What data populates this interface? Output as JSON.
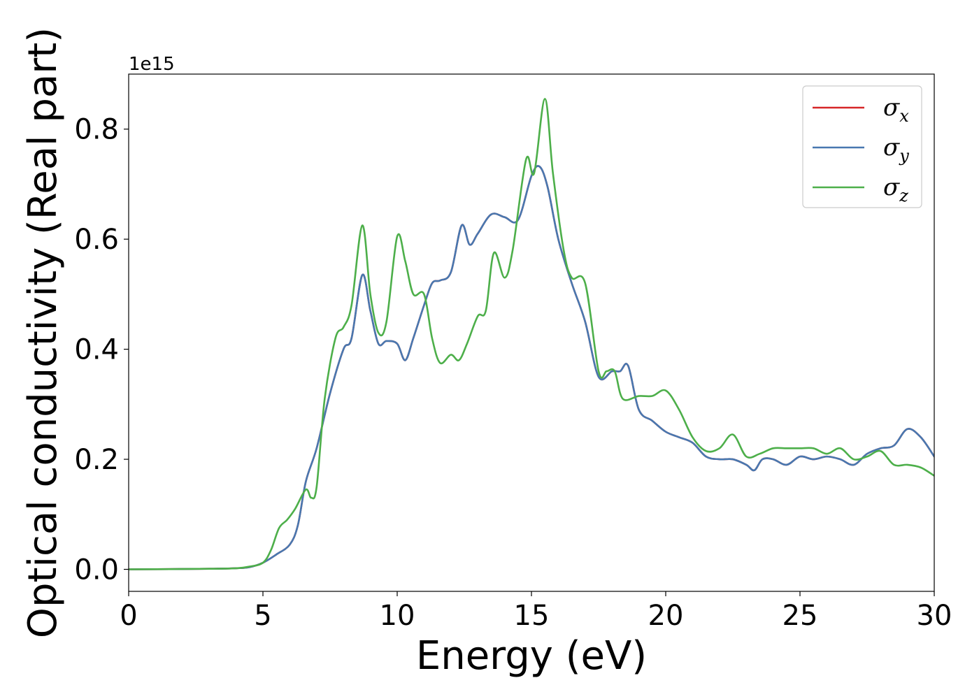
{
  "chart_data": {
    "type": "line",
    "title": "",
    "xlabel": "Energy (eV)",
    "ylabel": "Optical conductivity (Real part)",
    "y_offset_label": "1e15",
    "xlim": [
      0,
      30
    ],
    "ylim": [
      -0.04,
      0.9
    ],
    "xticks": [
      0,
      5,
      10,
      15,
      20,
      25,
      30
    ],
    "xtick_labels": [
      "0",
      "5",
      "10",
      "15",
      "20",
      "25",
      "30"
    ],
    "yticks": [
      0.0,
      0.2,
      0.4,
      0.6,
      0.8
    ],
    "ytick_labels": [
      "0.0",
      "0.2",
      "0.4",
      "0.6",
      "0.8"
    ],
    "grid": false,
    "legend_position": "top-right",
    "series": [
      {
        "name": "σx",
        "symbol": "σ",
        "subscript": "x",
        "color": "#d62728",
        "x": [
          0,
          3,
          4,
          4.5,
          5,
          5.5,
          6,
          6.3,
          6.6,
          7,
          7.5,
          8,
          8.3,
          8.7,
          9,
          9.3,
          9.6,
          10,
          10.3,
          10.6,
          11,
          11.3,
          11.6,
          12,
          12.4,
          12.7,
          13,
          13.5,
          14,
          14.5,
          15,
          15.3,
          15.6,
          16,
          16.5,
          17,
          17.5,
          18,
          18.3,
          18.6,
          19,
          19.5,
          20,
          20.5,
          21,
          21.5,
          22,
          22.5,
          23,
          23.3,
          23.6,
          24,
          24.5,
          25,
          25.5,
          26,
          26.5,
          27,
          27.5,
          28,
          28.5,
          29,
          29.5,
          30
        ],
        "y": [
          0.0,
          0.001,
          0.002,
          0.004,
          0.012,
          0.027,
          0.045,
          0.08,
          0.16,
          0.22,
          0.32,
          0.4,
          0.42,
          0.535,
          0.47,
          0.41,
          0.415,
          0.41,
          0.38,
          0.42,
          0.48,
          0.52,
          0.525,
          0.54,
          0.625,
          0.59,
          0.61,
          0.645,
          0.64,
          0.635,
          0.715,
          0.732,
          0.695,
          0.6,
          0.52,
          0.45,
          0.35,
          0.36,
          0.36,
          0.37,
          0.29,
          0.27,
          0.25,
          0.24,
          0.23,
          0.205,
          0.2,
          0.2,
          0.19,
          0.18,
          0.2,
          0.2,
          0.19,
          0.205,
          0.2,
          0.205,
          0.2,
          0.19,
          0.21,
          0.22,
          0.225,
          0.255,
          0.24,
          0.205
        ]
      },
      {
        "name": "σy",
        "symbol": "σ",
        "subscript": "y",
        "color": "#4878b0",
        "x": [
          0,
          3,
          4,
          4.5,
          5,
          5.5,
          6,
          6.3,
          6.6,
          7,
          7.5,
          8,
          8.3,
          8.7,
          9,
          9.3,
          9.6,
          10,
          10.3,
          10.6,
          11,
          11.3,
          11.6,
          12,
          12.4,
          12.7,
          13,
          13.5,
          14,
          14.5,
          15,
          15.3,
          15.6,
          16,
          16.5,
          17,
          17.5,
          18,
          18.3,
          18.6,
          19,
          19.5,
          20,
          20.5,
          21,
          21.5,
          22,
          22.5,
          23,
          23.3,
          23.6,
          24,
          24.5,
          25,
          25.5,
          26,
          26.5,
          27,
          27.5,
          28,
          28.5,
          29,
          29.5,
          30
        ],
        "y": [
          0.0,
          0.001,
          0.002,
          0.004,
          0.012,
          0.027,
          0.045,
          0.08,
          0.16,
          0.22,
          0.32,
          0.4,
          0.42,
          0.535,
          0.47,
          0.41,
          0.415,
          0.41,
          0.38,
          0.42,
          0.48,
          0.52,
          0.525,
          0.54,
          0.625,
          0.59,
          0.61,
          0.645,
          0.64,
          0.635,
          0.715,
          0.732,
          0.695,
          0.6,
          0.52,
          0.45,
          0.35,
          0.36,
          0.36,
          0.37,
          0.29,
          0.27,
          0.25,
          0.24,
          0.23,
          0.205,
          0.2,
          0.2,
          0.19,
          0.18,
          0.2,
          0.2,
          0.19,
          0.205,
          0.2,
          0.205,
          0.2,
          0.19,
          0.21,
          0.22,
          0.225,
          0.255,
          0.24,
          0.205
        ]
      },
      {
        "name": "σz",
        "symbol": "σ",
        "subscript": "z",
        "color": "#4daf4a",
        "x": [
          0,
          3,
          4,
          4.5,
          5,
          5.3,
          5.6,
          5.9,
          6.2,
          6.6,
          6.8,
          7,
          7.3,
          7.7,
          8,
          8.3,
          8.7,
          9,
          9.3,
          9.6,
          10,
          10.3,
          10.6,
          11,
          11.3,
          11.6,
          12,
          12.3,
          12.6,
          13,
          13.3,
          13.6,
          14,
          14.3,
          14.8,
          15.1,
          15.5,
          15.8,
          16.2,
          16.5,
          17,
          17.5,
          17.8,
          18.1,
          18.4,
          19,
          19.5,
          20,
          20.5,
          21,
          21.5,
          22,
          22.5,
          23,
          23.5,
          24,
          24.5,
          25,
          25.5,
          26,
          26.5,
          27,
          27.5,
          28,
          28.5,
          29,
          29.5,
          30
        ],
        "y": [
          0.0,
          0.001,
          0.002,
          0.005,
          0.012,
          0.035,
          0.075,
          0.09,
          0.11,
          0.145,
          0.13,
          0.15,
          0.31,
          0.42,
          0.44,
          0.48,
          0.625,
          0.5,
          0.43,
          0.45,
          0.605,
          0.56,
          0.5,
          0.5,
          0.42,
          0.375,
          0.39,
          0.38,
          0.41,
          0.46,
          0.47,
          0.575,
          0.53,
          0.58,
          0.745,
          0.72,
          0.855,
          0.72,
          0.58,
          0.53,
          0.52,
          0.36,
          0.36,
          0.36,
          0.31,
          0.315,
          0.315,
          0.325,
          0.29,
          0.24,
          0.215,
          0.22,
          0.245,
          0.205,
          0.21,
          0.22,
          0.22,
          0.22,
          0.22,
          0.21,
          0.22,
          0.2,
          0.205,
          0.215,
          0.19,
          0.19,
          0.185,
          0.17
        ]
      }
    ]
  }
}
